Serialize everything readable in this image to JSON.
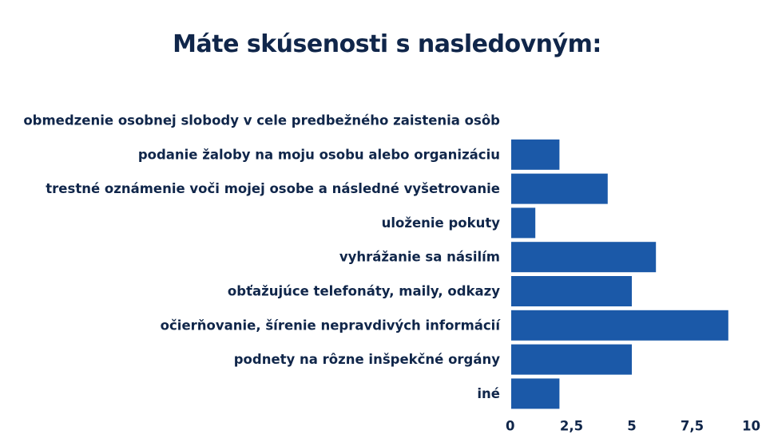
{
  "chart_data": {
    "type": "bar",
    "orientation": "horizontal",
    "title": "Máte skúsenosti s nasledovným:",
    "categories": [
      "obmedzenie osobnej slobody v cele predbežného zaistenia osôb",
      "podanie žaloby na moju osobu alebo organizáciu",
      "trestné oznámenie voči mojej osobe a následné vyšetrovanie",
      "uloženie pokuty",
      "vyhrážanie sa násilím",
      "obťažujúce telefonáty, maily, odkazy",
      "očierňovanie, šírenie nepravdivých informácií",
      "podnety na rôzne inšpekčné orgány",
      "iné"
    ],
    "values": [
      0,
      2,
      4,
      1,
      6,
      5,
      9,
      5,
      2
    ],
    "xlim": [
      0,
      10
    ],
    "xticks": [
      "0",
      "2,5",
      "5",
      "7,5",
      "10"
    ],
    "xtick_values": [
      0,
      2.5,
      5,
      7.5,
      10
    ],
    "grid": false,
    "bar_color": "#1b59a8"
  }
}
